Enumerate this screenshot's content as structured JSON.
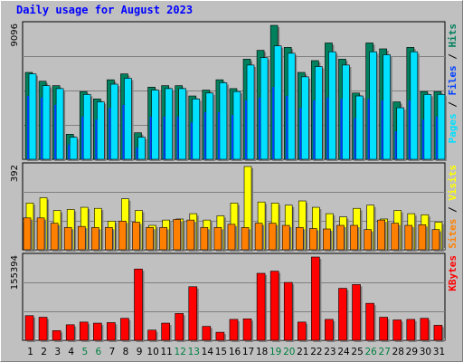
{
  "title": "Daily usage for August 2023",
  "colors": {
    "hits": "#00805c",
    "files": "#0040ff",
    "pages": "#00e0ff",
    "visits": "#ffff00",
    "sites": "#ff8000",
    "kbytes": "#ff0000",
    "weekend": "#008040",
    "weekday": "#000000",
    "background": "#c0c0c0"
  },
  "chart_data": [
    {
      "type": "bar",
      "panel": "hits_files_pages",
      "series": [
        {
          "name": "Hits",
          "values": [
            5900,
            5300,
            5000,
            1700,
            4600,
            4100,
            5400,
            5800,
            1800,
            4900,
            5000,
            5000,
            4300,
            4700,
            5400,
            4800,
            6800,
            7400,
            9096,
            7600,
            5900,
            6700,
            7900,
            6800,
            4500,
            7900,
            7500,
            3900,
            7600,
            4600,
            4600
          ]
        },
        {
          "name": "Files",
          "values": [
            4300,
            4200,
            3700,
            1000,
            2900,
            2700,
            3500,
            3700,
            800,
            2900,
            2900,
            2900,
            2500,
            3200,
            3200,
            3000,
            4000,
            4200,
            4900,
            4300,
            3500,
            4000,
            4200,
            4100,
            2800,
            4100,
            4000,
            1900,
            4000,
            2700,
            2900
          ]
        },
        {
          "name": "Pages",
          "values": [
            5800,
            5000,
            4800,
            1500,
            4400,
            3900,
            5100,
            5500,
            1500,
            4700,
            4800,
            4800,
            4100,
            4500,
            5200,
            4600,
            6400,
            6900,
            7700,
            7200,
            5600,
            6300,
            7300,
            6400,
            4300,
            7300,
            7100,
            3500,
            7300,
            4400,
            4400
          ]
        }
      ],
      "ylabel_max": "9096",
      "right_labels": [
        "Pages",
        "Files",
        "Hits"
      ]
    },
    {
      "type": "bar",
      "panel": "visits_sites",
      "series": [
        {
          "name": "Visits",
          "values": [
            220,
            245,
            185,
            190,
            200,
            195,
            135,
            240,
            185,
            115,
            140,
            145,
            170,
            140,
            160,
            220,
            392,
            225,
            220,
            210,
            230,
            200,
            170,
            155,
            195,
            210,
            145,
            185,
            170,
            165,
            130
          ]
        },
        {
          "name": "Sites",
          "values": [
            150,
            150,
            125,
            105,
            110,
            105,
            105,
            135,
            130,
            105,
            105,
            143,
            140,
            105,
            105,
            120,
            105,
            125,
            125,
            115,
            105,
            100,
            98,
            115,
            115,
            95,
            140,
            125,
            115,
            118,
            95
          ]
        }
      ],
      "ylabel_max": "392",
      "right_labels": [
        "Sites",
        "Visits"
      ]
    },
    {
      "type": "bar",
      "panel": "kbytes",
      "series": [
        {
          "name": "KBytes",
          "values": [
            46000,
            43000,
            18000,
            29000,
            34000,
            32000,
            33000,
            41000,
            133000,
            19000,
            32000,
            50000,
            100000,
            26000,
            15000,
            39000,
            40000,
            125000,
            129000,
            108000,
            34000,
            155394,
            39000,
            97000,
            104000,
            69000,
            43000,
            38000,
            39000,
            41000,
            28000
          ]
        }
      ],
      "ylabel_max": "155394",
      "right_labels": [
        "KBytes"
      ]
    }
  ],
  "days": [
    "1",
    "2",
    "3",
    "4",
    "5",
    "6",
    "7",
    "8",
    "9",
    "10",
    "11",
    "12",
    "13",
    "14",
    "15",
    "16",
    "17",
    "18",
    "19",
    "20",
    "21",
    "22",
    "23",
    "24",
    "25",
    "26",
    "27",
    "28",
    "29",
    "30",
    "31"
  ],
  "weekend_days": [
    5,
    6,
    12,
    13,
    19,
    20,
    26,
    27
  ]
}
